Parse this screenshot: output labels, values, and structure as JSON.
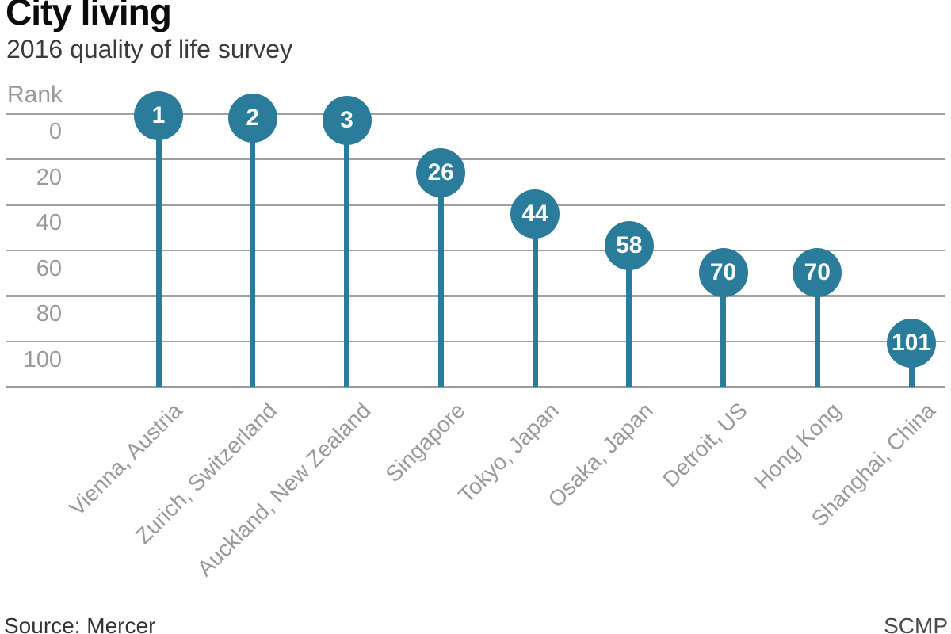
{
  "header": {
    "title": "City living",
    "subtitle": "2016 quality of life survey"
  },
  "chart_data": {
    "type": "lollipop",
    "title": "City living",
    "subtitle": "2016 quality of life survey",
    "ylabel": "Rank",
    "categories": [
      "Vienna, Austria",
      "Zurich, Switzerland",
      "Auckland, New Zealand",
      "Singapore",
      "Tokyo, Japan",
      "Osaka, Japan",
      "Detroit, US",
      "Hong Kong",
      "Shanghai, China"
    ],
    "values": [
      1,
      2,
      3,
      26,
      44,
      58,
      70,
      70,
      101
    ],
    "value_labels": [
      "1",
      "2",
      "3",
      "26",
      "44",
      "58",
      "70",
      "70",
      "101"
    ],
    "yticks": [
      0,
      20,
      40,
      60,
      80,
      100
    ],
    "ylim": [
      0,
      120
    ],
    "y_axis_direction": "inverted (rank 0 at top)",
    "grid": true,
    "legend": "none",
    "colors": {
      "accent": "#2b7c9b",
      "grid": "#a0a0a0",
      "axis": "#9a9a9a",
      "tick_text": "#9a9a9a",
      "category_text": "#999999",
      "dot_text": "#fafdfd"
    }
  },
  "footer": {
    "source": "Source: Mercer",
    "credit": "SCMP"
  }
}
